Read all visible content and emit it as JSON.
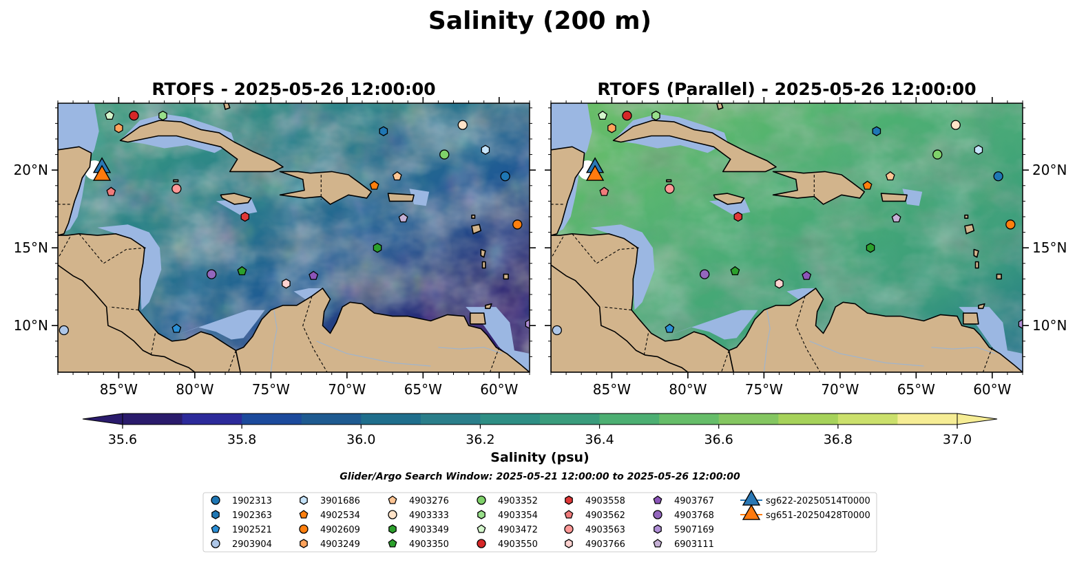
{
  "figure": {
    "title": "Salinity (200 m)",
    "panels": [
      {
        "title": "RTOFS - 2025-05-26 12:00:00",
        "variant": "rtofs"
      },
      {
        "title": "RTOFS (Parallel) - 2025-05-26 12:00:00",
        "variant": "parallel"
      }
    ],
    "x_ticks": [
      "85°W",
      "80°W",
      "75°W",
      "70°W",
      "65°W",
      "60°W"
    ],
    "y_ticks": [
      "20°N",
      "15°N",
      "10°N"
    ],
    "colorbar": {
      "label": "Salinity (psu)",
      "ticks": [
        "35.6",
        "35.8",
        "36.0",
        "36.2",
        "36.4",
        "36.6",
        "36.8",
        "37.0"
      ],
      "min": 35.6,
      "max": 37.0,
      "step": 0.1
    },
    "search_window": "Glider/Argo Search Window: 2025-05-21 12:00:00 to 2025-05-26 12:00:00"
  },
  "map_extent": {
    "lon": [
      -89,
      -58
    ],
    "lat": [
      7,
      24.3
    ]
  },
  "colors": {
    "land": "#d2b48c",
    "shelf": "#9bb7e2",
    "deep": "#2b1b6c",
    "glider_sg622": "#2a78b5",
    "glider_sg651": "#ff7a0e",
    "colorbar_bins": [
      "#2a1b6c",
      "#2c2a9a",
      "#1c4a9c",
      "#1e5a90",
      "#1f6e8c",
      "#2a7e8a",
      "#2e8e84",
      "#3a9c7c",
      "#4caf72",
      "#66bd69",
      "#84c661",
      "#a6d25a",
      "#cbe06c",
      "#f6ed95"
    ]
  },
  "legend": [
    {
      "label": "1902313",
      "marker": "circle",
      "color": "#1f77b4"
    },
    {
      "label": "1902363",
      "marker": "hexagon",
      "color": "#1f77b4"
    },
    {
      "label": "1902521",
      "marker": "pentagon",
      "color": "#2b8fd6"
    },
    {
      "label": "2903904",
      "marker": "circle",
      "color": "#aec7e8"
    },
    {
      "label": "3901686",
      "marker": "hexagon",
      "color": "#c6e4fb"
    },
    {
      "label": "4902534",
      "marker": "pentagon",
      "color": "#ff7f0e"
    },
    {
      "label": "4902609",
      "marker": "circle",
      "color": "#ff7f0e"
    },
    {
      "label": "4903249",
      "marker": "hexagon",
      "color": "#ffa35c"
    },
    {
      "label": "4903276",
      "marker": "pentagon",
      "color": "#ffc594"
    },
    {
      "label": "4903333",
      "marker": "circle",
      "color": "#ffe3c8"
    },
    {
      "label": "4903349",
      "marker": "hexagon",
      "color": "#2ca02c"
    },
    {
      "label": "4903350",
      "marker": "pentagon",
      "color": "#2ca02c"
    },
    {
      "label": "4903352",
      "marker": "circle",
      "color": "#7fd16a"
    },
    {
      "label": "4903354",
      "marker": "hexagon",
      "color": "#98df8a"
    },
    {
      "label": "4903472",
      "marker": "pentagon",
      "color": "#d4f6cc"
    },
    {
      "label": "4903550",
      "marker": "circle",
      "color": "#d62728"
    },
    {
      "label": "4903558",
      "marker": "hexagon",
      "color": "#e03838"
    },
    {
      "label": "4903562",
      "marker": "pentagon",
      "color": "#f07b7b"
    },
    {
      "label": "4903563",
      "marker": "circle",
      "color": "#ff9896"
    },
    {
      "label": "4903766",
      "marker": "hexagon",
      "color": "#ffd2d0"
    },
    {
      "label": "4903767",
      "marker": "pentagon",
      "color": "#8c55b9"
    },
    {
      "label": "4903768",
      "marker": "circle",
      "color": "#9467bd"
    },
    {
      "label": "5907169",
      "marker": "hexagon",
      "color": "#b08fd6"
    },
    {
      "label": "6903111",
      "marker": "pentagon",
      "color": "#c5b0d5"
    },
    {
      "label": "sg622-20250514T0000",
      "marker": "glider",
      "color": "#2a78b5"
    },
    {
      "label": "sg651-20250428T0000",
      "marker": "glider",
      "color": "#ff7a0e"
    }
  ],
  "floats": [
    {
      "id": "1902313",
      "lon": -59.6,
      "lat": 19.6
    },
    {
      "id": "1902363",
      "lon": -67.6,
      "lat": 22.5
    },
    {
      "id": "1902521",
      "lon": -81.2,
      "lat": 9.8
    },
    {
      "id": "2903904",
      "lon": -88.6,
      "lat": 9.7
    },
    {
      "id": "3901686",
      "lon": -60.9,
      "lat": 21.3
    },
    {
      "id": "4902534",
      "lon": -68.2,
      "lat": 19.0
    },
    {
      "id": "4902609",
      "lon": -58.8,
      "lat": 16.5
    },
    {
      "id": "4903249",
      "lon": -85.0,
      "lat": 22.7
    },
    {
      "id": "4903276",
      "lon": -66.7,
      "lat": 19.6
    },
    {
      "id": "4903333",
      "lon": -62.4,
      "lat": 22.9
    },
    {
      "id": "4903349",
      "lon": -68.0,
      "lat": 15.0
    },
    {
      "id": "4903350",
      "lon": -76.9,
      "lat": 13.5
    },
    {
      "id": "4903352",
      "lon": -63.6,
      "lat": 21.0
    },
    {
      "id": "4903354",
      "lon": -82.1,
      "lat": 23.5
    },
    {
      "id": "4903472",
      "lon": -85.6,
      "lat": 23.5
    },
    {
      "id": "4903550",
      "lon": -84.0,
      "lat": 23.5
    },
    {
      "id": "4903558",
      "lon": -76.7,
      "lat": 17.0
    },
    {
      "id": "4903562",
      "lon": -85.5,
      "lat": 18.6
    },
    {
      "id": "4903563",
      "lon": -81.2,
      "lat": 18.8
    },
    {
      "id": "4903766",
      "lon": -74.0,
      "lat": 12.7
    },
    {
      "id": "4903767",
      "lon": -72.2,
      "lat": 13.2
    },
    {
      "id": "4903768",
      "lon": -78.9,
      "lat": 13.3
    },
    {
      "id": "5907169",
      "lon": -58.0,
      "lat": 10.1
    },
    {
      "id": "6903111",
      "lon": -66.3,
      "lat": 16.9
    }
  ],
  "gliders": [
    {
      "id": "sg622-20250514T0000",
      "lon": -86.1,
      "lat": 20.2
    },
    {
      "id": "sg651-20250428T0000",
      "lon": -86.1,
      "lat": 19.7
    }
  ]
}
